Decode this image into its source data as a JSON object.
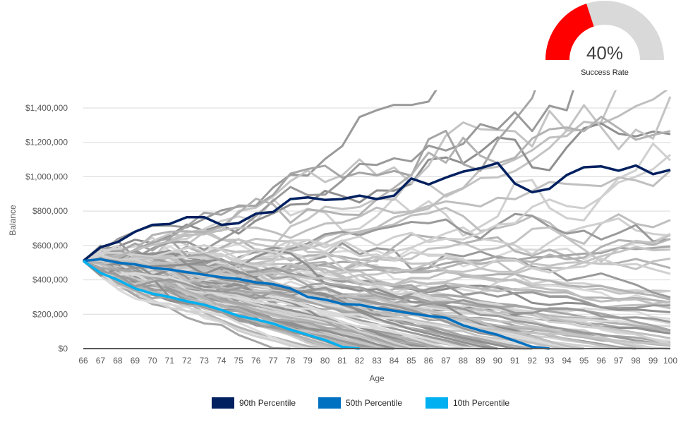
{
  "gauge": {
    "value_label": "40%",
    "caption": "Success Rate",
    "fraction": 0.4,
    "fill_color": "#ff0000",
    "track_color": "#d9d9d9"
  },
  "chart_data": {
    "type": "line",
    "xlabel": "Age",
    "ylabel": "Balance",
    "x": [
      66,
      67,
      68,
      69,
      70,
      71,
      72,
      73,
      74,
      75,
      76,
      77,
      78,
      79,
      80,
      81,
      82,
      83,
      84,
      85,
      86,
      87,
      88,
      89,
      90,
      91,
      92,
      93,
      94,
      95,
      96,
      97,
      98,
      99,
      100
    ],
    "ylim": [
      0,
      1400000
    ],
    "yticks": [
      0,
      200000,
      400000,
      600000,
      800000,
      1000000,
      1200000,
      1400000
    ],
    "ytick_labels": [
      "$0",
      "$200,000",
      "$400,000",
      "$600,000",
      "$800,000",
      "$1,000,000",
      "$1,200,000",
      "$1,400,000"
    ],
    "grid": "horizontal",
    "legend_position": "bottom",
    "series": [
      {
        "name": "90th Percentile",
        "color": "#002060",
        "values": [
          510000,
          590000,
          620000,
          680000,
          720000,
          725000,
          765000,
          765000,
          720000,
          730000,
          785000,
          795000,
          870000,
          880000,
          865000,
          870000,
          890000,
          870000,
          890000,
          990000,
          955000,
          995000,
          1030000,
          1050000,
          1080000,
          960000,
          910000,
          930000,
          1010000,
          1055000,
          1060000,
          1035000,
          1065000,
          1015000,
          1040000
        ]
      },
      {
        "name": "50th Percentile",
        "color": "#0070c0",
        "values": [
          510000,
          520000,
          500000,
          490000,
          470000,
          460000,
          445000,
          430000,
          415000,
          405000,
          385000,
          375000,
          350000,
          300000,
          285000,
          260000,
          255000,
          235000,
          220000,
          205000,
          190000,
          180000,
          135000,
          105000,
          80000,
          45000,
          10000,
          0,
          null,
          null,
          null,
          null,
          null,
          null,
          null
        ]
      },
      {
        "name": "10th Percentile",
        "color": "#00b0f0",
        "values": [
          510000,
          440000,
          400000,
          350000,
          320000,
          300000,
          275000,
          255000,
          225000,
          190000,
          170000,
          145000,
          110000,
          80000,
          50000,
          10000,
          0,
          null,
          null,
          null,
          null,
          null,
          null,
          null,
          null,
          null,
          null,
          null,
          null,
          null,
          null,
          null,
          null,
          null,
          null
        ]
      }
    ],
    "simulations": {
      "count": 120,
      "start_value": 510000,
      "colors": [
        "#c4c4c4",
        "#d0d0d0",
        "#b3b3b3",
        "#a6a6a6",
        "#dadada",
        "#9a9a9a",
        "#bfbfbf",
        "#8f8f8f"
      ]
    }
  }
}
